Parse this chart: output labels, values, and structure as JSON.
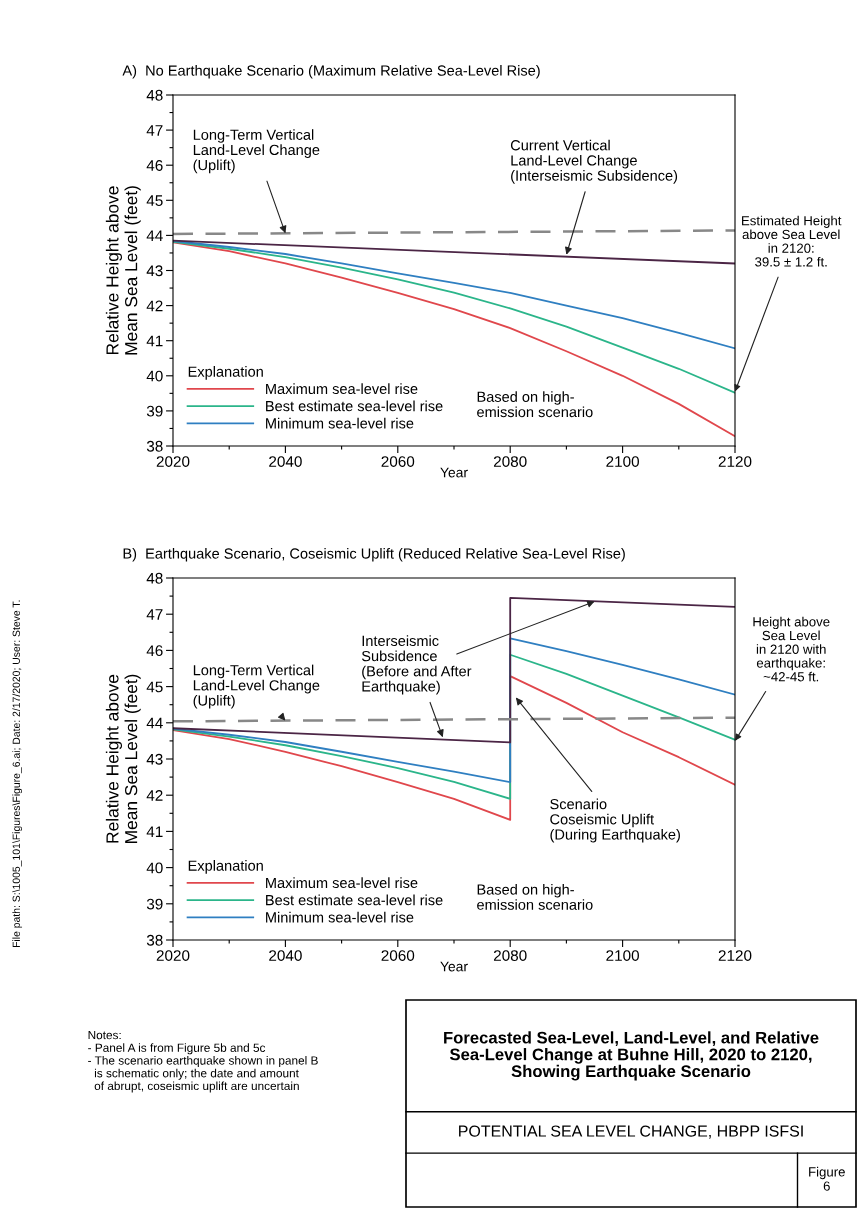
{
  "chart_data": [
    {
      "type": "line",
      "title": "A)  No Earthquake Scenario (Maximum Relative Sea-Level Rise)",
      "xlabel": "Year",
      "ylabel": "Relative Height above\nMean Sea Level (feet)",
      "legend_title": "Explanation",
      "legend": "bottom left",
      "grid": false,
      "line_style": "solid",
      "marker": "none",
      "xlim": [
        2020,
        2120
      ],
      "ylim": [
        38,
        48
      ],
      "xticks": [
        2020,
        {
          "value": 2030,
          "label": null
        },
        2040,
        {
          "value": 2050,
          "label": null
        },
        2060,
        {
          "value": 2070,
          "label": null
        },
        2080,
        {
          "value": 2090,
          "label": null
        },
        2100,
        {
          "value": 2110,
          "label": null
        },
        2120
      ],
      "yticks": [
        38,
        {
          "value": 38.5,
          "label": null
        },
        39,
        {
          "value": 39.5,
          "label": null
        },
        40,
        {
          "value": 40.5,
          "label": null
        },
        41,
        {
          "value": 41.5,
          "label": null
        },
        42,
        {
          "value": 42.5,
          "label": null
        },
        43,
        {
          "value": 43.5,
          "label": null
        },
        44,
        {
          "value": 44.5,
          "label": null
        },
        45,
        {
          "value": 45.5,
          "label": null
        },
        46,
        {
          "value": 46.5,
          "label": null
        },
        47,
        {
          "value": 47.5,
          "label": null
        },
        48
      ],
      "series": [
        {
          "name": "Maximum sea-level rise",
          "color": "#e0474c",
          "x": [
            2020,
            2030,
            2040,
            2050,
            2060,
            2070,
            2080,
            2090,
            2100,
            2110,
            2120
          ],
          "values": [
            43.8,
            43.55,
            43.2,
            42.8,
            42.36,
            41.9,
            41.36,
            40.7,
            40.0,
            39.2,
            38.28
          ]
        },
        {
          "name": "Best estimate sea-level rise",
          "color": "#2bb58a",
          "x": [
            2020,
            2030,
            2040,
            2050,
            2060,
            2070,
            2080,
            2090,
            2100,
            2110,
            2120
          ],
          "values": [
            43.82,
            43.62,
            43.38,
            43.08,
            42.75,
            42.37,
            41.92,
            41.4,
            40.8,
            40.2,
            39.52
          ]
        },
        {
          "name": "Minimum sea-level rise",
          "color": "#2f7fc1",
          "x": [
            2020,
            2030,
            2040,
            2050,
            2060,
            2070,
            2080,
            2090,
            2100,
            2110,
            2120
          ],
          "values": [
            43.84,
            43.67,
            43.47,
            43.2,
            42.92,
            42.65,
            42.36,
            42.0,
            41.64,
            41.22,
            40.78
          ]
        },
        {
          "color": "#4b2545",
          "x": [
            2020,
            2120
          ],
          "values": [
            43.85,
            43.2
          ]
        },
        {
          "color": "#888888",
          "line_style": "dashed",
          "x": [
            2020,
            2120
          ],
          "values": [
            44.04,
            44.14
          ]
        }
      ],
      "annotations": [
        {
          "text": "Long-Term Vertical\nLand-Level Change\n(Uplift)",
          "x": 2040,
          "y": 44.06
        },
        {
          "text": "Current Vertical\nLand-Level Change\n(Interseismic Subsidence)",
          "x": 2090,
          "y": 43.45
        },
        {
          "text": "Estimated Height\nabove Sea Level\nin 2120:\n39.5 ± 1.2 ft.",
          "x": 2120,
          "y": 39.55
        },
        "Based on high-\nemission scenario"
      ]
    },
    {
      "type": "line",
      "title": "B)  Earthquake Scenario, Coseismic Uplift (Reduced Relative Sea-Level Rise)",
      "xlabel": "Year",
      "ylabel": "Relative Height above\nMean Sea Level (feet)",
      "legend_title": "Explanation",
      "legend": "bottom left",
      "grid": false,
      "line_style": "solid",
      "marker": "none",
      "xlim": [
        2020,
        2120
      ],
      "ylim": [
        38,
        48
      ],
      "xticks": [
        2020,
        {
          "value": 2030,
          "label": null
        },
        2040,
        {
          "value": 2050,
          "label": null
        },
        2060,
        {
          "value": 2070,
          "label": null
        },
        2080,
        {
          "value": 2090,
          "label": null
        },
        2100,
        {
          "value": 2110,
          "label": null
        },
        2120
      ],
      "yticks": [
        38,
        {
          "value": 38.5,
          "label": null
        },
        39,
        {
          "value": 39.5,
          "label": null
        },
        40,
        {
          "value": 40.5,
          "label": null
        },
        41,
        {
          "value": 41.5,
          "label": null
        },
        42,
        {
          "value": 42.5,
          "label": null
        },
        43,
        {
          "value": 43.5,
          "label": null
        },
        44,
        {
          "value": 44.5,
          "label": null
        },
        45,
        {
          "value": 45.5,
          "label": null
        },
        46,
        {
          "value": 46.5,
          "label": null
        },
        47,
        {
          "value": 47.5,
          "label": null
        },
        48
      ],
      "series": [
        {
          "name": "Maximum sea-level rise",
          "color": "#e0474c",
          "x": [
            2020,
            2030,
            2040,
            2050,
            2060,
            2070,
            2080,
            2080,
            2090,
            2100,
            2110,
            2120
          ],
          "values": [
            43.8,
            43.55,
            43.2,
            42.8,
            42.36,
            41.9,
            41.32,
            45.29,
            44.55,
            43.74,
            43.05,
            42.29
          ]
        },
        {
          "name": "Best estimate sea-level rise",
          "color": "#2bb58a",
          "x": [
            2020,
            2030,
            2040,
            2050,
            2060,
            2070,
            2080,
            2080,
            2090,
            2100,
            2110,
            2120
          ],
          "values": [
            43.82,
            43.62,
            43.38,
            43.08,
            42.75,
            42.37,
            41.9,
            45.88,
            45.35,
            44.75,
            44.15,
            43.53
          ]
        },
        {
          "name": "Minimum sea-level rise",
          "color": "#2f7fc1",
          "x": [
            2020,
            2030,
            2040,
            2050,
            2060,
            2070,
            2080,
            2080,
            2090,
            2100,
            2110,
            2120
          ],
          "values": [
            43.84,
            43.67,
            43.47,
            43.2,
            42.92,
            42.65,
            42.36,
            46.33,
            45.98,
            45.6,
            45.2,
            44.78
          ]
        },
        {
          "color": "#4b2545",
          "x": [
            2020,
            2080,
            2080,
            2120
          ],
          "values": [
            43.85,
            43.46,
            47.45,
            47.2
          ]
        },
        {
          "color": "#888888",
          "line_style": "dashed",
          "x": [
            2020,
            2120
          ],
          "values": [
            44.04,
            44.14
          ]
        }
      ],
      "annotations": [
        {
          "text": "Long-Term Vertical\nLand-Level Change\n(Uplift)",
          "x": 2040,
          "y": 44.06
        },
        {
          "text": "Interseismic\nSubsidence\n(Before and After\nEarthquake)",
          "x": 2068,
          "y": 43.6
        },
        {
          "text": "Scenario\nCoseismic Uplift\n(During Earthquake)",
          "x": 2081,
          "y": 44.7
        },
        {
          "text": "Height above\nSea Level\nin 2120 with\nearthquake:\n~42-45 ft.",
          "x": 2120,
          "y": 43.5
        },
        "Based on high-\nemission scenario"
      ]
    },
    {
      "type": "other",
      "title": "Forecasted Sea-Level, Land-Level, and Relative\nSea-Level Change at Buhne Hill, 2020 to 2120,\nShowing Earthquake Scenario",
      "subtitle": "POTENTIAL SEA LEVEL CHANGE, HBPP ISFSI",
      "annotations": [
        "Figure\n6",
        "Notes:\n- Panel A is from Figure 5b and 5c\n- The scenario earthquake shown in panel B\n  is schematic only; the date and amount\n  of abrupt, coseismic uplift are uncertain",
        "File path: S:\\1005_101\\Figures\\Figure_6.ai; Date: 2/17/2020; User: Steve T."
      ]
    }
  ]
}
